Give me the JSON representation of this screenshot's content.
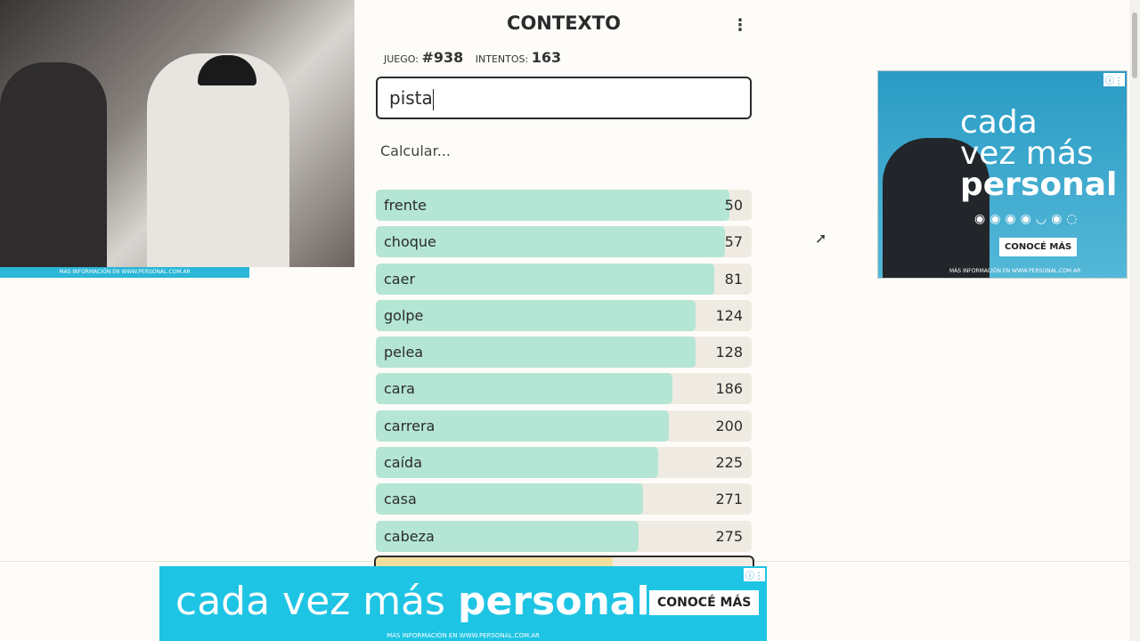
{
  "header": {
    "title": "CONTEXTO",
    "menu_icon": "kebab-menu-icon"
  },
  "stats": {
    "game_label": "JUEGO:",
    "game_value": "#938",
    "attempts_label": "INTENTOS:",
    "attempts_value": "163"
  },
  "input": {
    "value": "pista"
  },
  "status": "Calcular...",
  "guesses": [
    {
      "word": "frente",
      "rank": "50",
      "fill_pct": 94
    },
    {
      "word": "choque",
      "rank": "57",
      "fill_pct": 93
    },
    {
      "word": "caer",
      "rank": "81",
      "fill_pct": 90
    },
    {
      "word": "golpe",
      "rank": "124",
      "fill_pct": 85
    },
    {
      "word": "pelea",
      "rank": "128",
      "fill_pct": 85
    },
    {
      "word": "cara",
      "rank": "186",
      "fill_pct": 79
    },
    {
      "word": "carrera",
      "rank": "200",
      "fill_pct": 78
    },
    {
      "word": "caída",
      "rank": "225",
      "fill_pct": 75
    },
    {
      "word": "casa",
      "rank": "271",
      "fill_pct": 71
    },
    {
      "word": "cabeza",
      "rank": "275",
      "fill_pct": 70
    }
  ],
  "partial_row": {
    "fill_pct": 63
  },
  "colors": {
    "fill_close": "#b4e5d5",
    "fill_mid": "#f2dfa0",
    "track": "#efebe2",
    "ad": "#1ec4e4"
  },
  "ad_right": {
    "line1": "cada",
    "line2": "vez más",
    "line3": "personal",
    "button": "CONOCÉ MÁS",
    "small": "MÁS INFORMACIÓN EN WWW.PERSONAL.COM.AR"
  },
  "ad_bottom": {
    "text": "cada vez más",
    "bold": "personal",
    "button": "CONOCÉ MÁS",
    "small": "MÁS INFORMACIÓN EN WWW.PERSONAL.COM.AR"
  },
  "webcam_strip": "MÁS INFORMACIÓN EN WWW.PERSONAL.COM.AR"
}
